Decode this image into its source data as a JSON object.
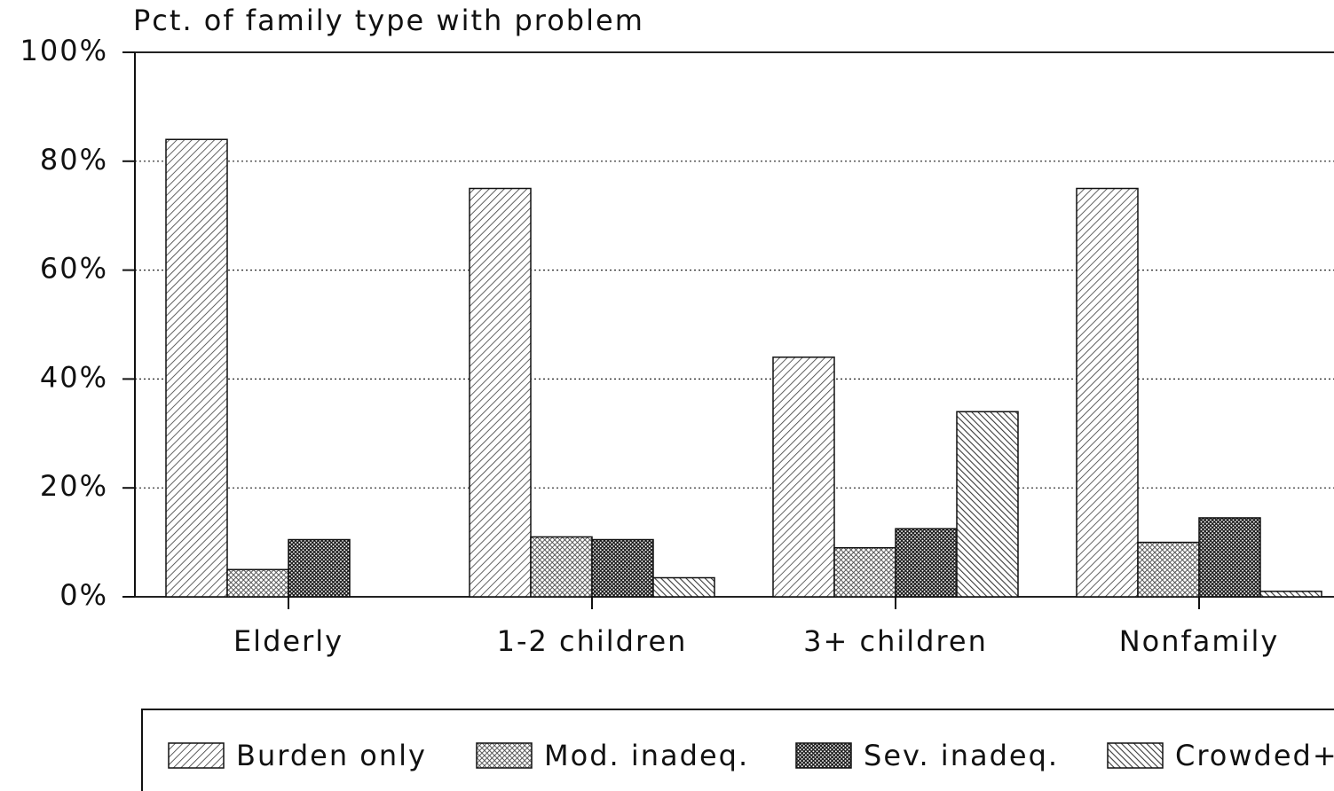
{
  "chart_data": {
    "type": "bar",
    "title": "Pct. of family type with problem",
    "categories": [
      "Elderly",
      "1-2 children",
      "3+ children",
      "Nonfamily"
    ],
    "series": [
      {
        "name": "Burden only",
        "color": "#3a3a3a",
        "values": [
          84,
          75,
          44,
          75
        ]
      },
      {
        "name": "Mod. inadeq.",
        "color": "#4a4a4a",
        "values": [
          5,
          11,
          9,
          10
        ]
      },
      {
        "name": "Sev. inadeq.",
        "color": "#151515",
        "values": [
          10.5,
          10.5,
          12.5,
          14.5
        ]
      },
      {
        "name": "Crowded+",
        "color": "#3a3a3a",
        "values": [
          0,
          3.5,
          34,
          1
        ]
      }
    ],
    "ylim": [
      0,
      100
    ],
    "yticks": [
      {
        "value": 0,
        "label": "0%"
      },
      {
        "value": 20,
        "label": "20%"
      },
      {
        "value": 40,
        "label": "40%"
      },
      {
        "value": 60,
        "label": "60%"
      },
      {
        "value": 80,
        "label": "80%"
      },
      {
        "value": 100,
        "label": "100%"
      }
    ],
    "grid": true
  }
}
